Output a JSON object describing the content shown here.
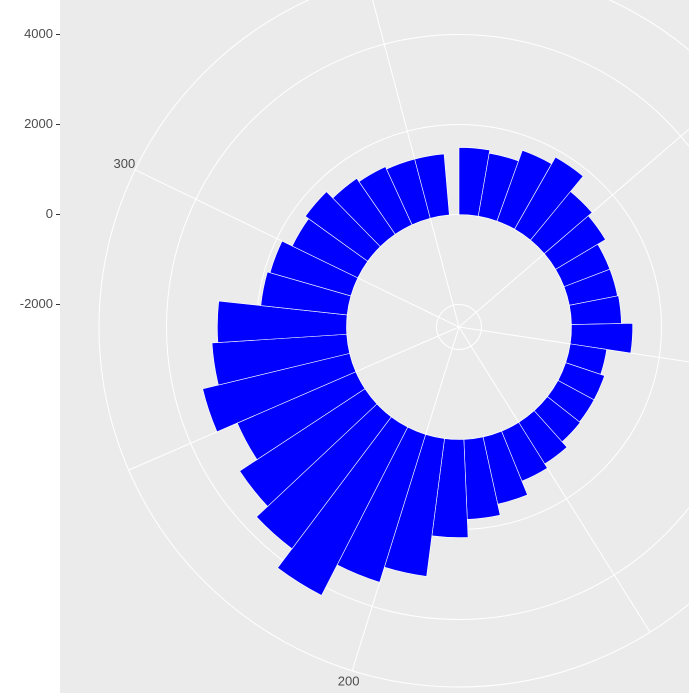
{
  "chart_data": {
    "type": "polar-bar",
    "x": [
      5,
      15,
      25,
      35,
      45,
      55,
      65,
      75,
      85,
      95,
      105,
      115,
      125,
      135,
      145,
      155,
      165,
      175,
      185,
      195,
      205,
      215,
      225,
      235,
      245,
      255,
      265,
      275,
      285,
      295,
      305,
      315,
      325,
      335,
      345,
      355
    ],
    "values": [
      1490,
      1420,
      1670,
      1840,
      1400,
      1290,
      1090,
      1090,
      1110,
      1360,
      820,
      910,
      910,
      930,
      1090,
      1200,
      1530,
      1780,
      2180,
      3090,
      3440,
      4200,
      3670,
      3330,
      2870,
      3360,
      3000,
      2870,
      1930,
      1870,
      1620,
      1710,
      1510,
      1420,
      1360,
      1360
    ],
    "bar_width": 10,
    "color": "#0000ff",
    "xlim": [
      0,
      365
    ],
    "xticks": [
      200,
      300
    ],
    "minor_xticks": [
      50,
      100,
      150,
      250,
      350
    ],
    "ylim": [
      -2500,
      5500
    ],
    "yticks": [
      -2000,
      0,
      2000,
      4000
    ],
    "grid": true
  }
}
